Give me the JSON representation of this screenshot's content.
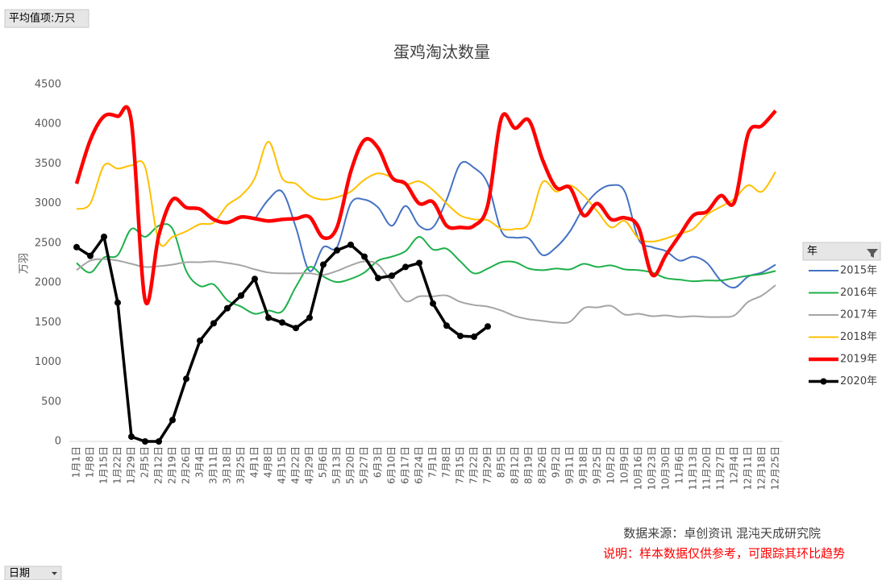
{
  "pivot_fields": {
    "value_field": "平均值项:万只",
    "axis_field": "日期"
  },
  "chart_data": {
    "type": "line",
    "title": "蛋鸡淘汰数量",
    "ylabel": "万羽",
    "legend_title": "年",
    "legend_position": "right",
    "annotations": [
      "数据来源：卓创资讯 混沌天成研究院",
      "说明：样本数据仅供参考，可跟踪其环比趋势"
    ],
    "categories": [
      "1月1日",
      "1月8日",
      "1月15日",
      "1月22日",
      "1月29日",
      "2月5日",
      "2月12日",
      "2月19日",
      "2月26日",
      "3月4日",
      "3月11日",
      "3月18日",
      "3月25日",
      "4月1日",
      "4月8日",
      "4月15日",
      "4月22日",
      "4月29日",
      "5月6日",
      "5月13日",
      "5月20日",
      "5月27日",
      "6月3日",
      "6月10日",
      "6月17日",
      "6月24日",
      "7月1日",
      "7月8日",
      "7月15日",
      "7月22日",
      "7月29日",
      "8月5日",
      "8月12日",
      "8月19日",
      "8月26日",
      "9月2日",
      "9月11日",
      "9月18日",
      "9月25日",
      "10月2日",
      "10月9日",
      "10月16日",
      "10月23日",
      "10月30日",
      "11月6日",
      "11月13日",
      "11月20日",
      "11月27日",
      "12月4日",
      "12月11日",
      "12月18日",
      "12月25日"
    ],
    "ylim": [
      0,
      4500
    ],
    "yticks": [
      0,
      500,
      1000,
      1500,
      2000,
      2500,
      3000,
      3500,
      4000,
      4500
    ],
    "grid": false,
    "series": [
      {
        "name": "2015年",
        "color": "#4472c4",
        "width": 2,
        "values": [
          null,
          null,
          null,
          null,
          null,
          null,
          null,
          null,
          null,
          null,
          null,
          null,
          null,
          2800,
          3050,
          3150,
          2700,
          2150,
          2450,
          2450,
          3000,
          3050,
          2950,
          2720,
          2970,
          2720,
          2700,
          3050,
          3500,
          3450,
          3250,
          2650,
          2570,
          2560,
          2350,
          2450,
          2650,
          2950,
          3150,
          3230,
          3150,
          2550,
          2450,
          2400,
          2280,
          2330,
          2250,
          2030,
          1940,
          2080,
          2130,
          2230
        ]
      },
      {
        "name": "2016年",
        "color": "#1fb04b",
        "width": 2,
        "values": [
          2250,
          2130,
          2320,
          2350,
          2680,
          2580,
          2720,
          2680,
          2150,
          1960,
          1980,
          1780,
          1700,
          1610,
          1650,
          1640,
          1950,
          2200,
          2080,
          2010,
          2050,
          2130,
          2280,
          2330,
          2400,
          2580,
          2420,
          2430,
          2270,
          2120,
          2180,
          2260,
          2260,
          2180,
          2160,
          2180,
          2170,
          2240,
          2200,
          2220,
          2170,
          2160,
          2130,
          2060,
          2040,
          2020,
          2030,
          2030,
          2060,
          2090,
          2110,
          2150
        ]
      },
      {
        "name": "2017年",
        "color": "#a5a5a5",
        "width": 2,
        "values": [
          2160,
          2280,
          2300,
          2280,
          2240,
          2200,
          2210,
          2230,
          2260,
          2260,
          2270,
          2250,
          2220,
          2170,
          2130,
          2120,
          2120,
          2120,
          2100,
          2150,
          2220,
          2270,
          2230,
          2000,
          1770,
          1830,
          1830,
          1840,
          1760,
          1720,
          1700,
          1650,
          1580,
          1540,
          1520,
          1500,
          1510,
          1680,
          1690,
          1710,
          1600,
          1610,
          1580,
          1590,
          1570,
          1580,
          1570,
          1570,
          1590,
          1760,
          1840,
          1970
        ]
      },
      {
        "name": "2018年",
        "color": "#ffc000",
        "width": 2,
        "values": [
          2930,
          3000,
          3480,
          3440,
          3480,
          3460,
          2520,
          2580,
          2650,
          2740,
          2760,
          2980,
          3100,
          3320,
          3780,
          3320,
          3250,
          3100,
          3050,
          3080,
          3150,
          3300,
          3380,
          3330,
          3240,
          3280,
          3170,
          3000,
          2850,
          2800,
          2790,
          2680,
          2680,
          2750,
          3270,
          3150,
          3230,
          3100,
          2900,
          2700,
          2780,
          2560,
          2520,
          2560,
          2620,
          2680,
          2860,
          2960,
          3060,
          3230,
          3150,
          3400
        ]
      },
      {
        "name": "2019年",
        "color": "#ff0000",
        "width": 4.5,
        "values": [
          3250,
          3800,
          4100,
          4100,
          4030,
          1780,
          2600,
          3050,
          2950,
          2930,
          2800,
          2760,
          2830,
          2810,
          2780,
          2800,
          2810,
          2830,
          2570,
          2700,
          3400,
          3800,
          3700,
          3330,
          3250,
          3000,
          3020,
          2720,
          2700,
          2720,
          2980,
          4080,
          3950,
          4050,
          3550,
          3200,
          3200,
          2850,
          3000,
          2800,
          2820,
          2700,
          2100,
          2350,
          2600,
          2850,
          2900,
          3100,
          3020,
          3880,
          3980,
          4170
        ]
      },
      {
        "name": "2020年",
        "color": "#000000",
        "width": 3.5,
        "markers": true,
        "values": [
          2450,
          2340,
          2580,
          1750,
          60,
          0,
          0,
          270,
          790,
          1270,
          1490,
          1680,
          1840,
          2050,
          1560,
          1500,
          1430,
          1560,
          2230,
          2410,
          2480,
          2330,
          2060,
          2090,
          2200,
          2250,
          1740,
          1460,
          1330,
          1320,
          1450,
          null,
          null,
          null,
          null,
          null,
          null,
          null,
          null,
          null,
          null,
          null,
          null,
          null,
          null,
          null,
          null,
          null,
          null,
          null,
          null,
          null
        ]
      }
    ]
  }
}
